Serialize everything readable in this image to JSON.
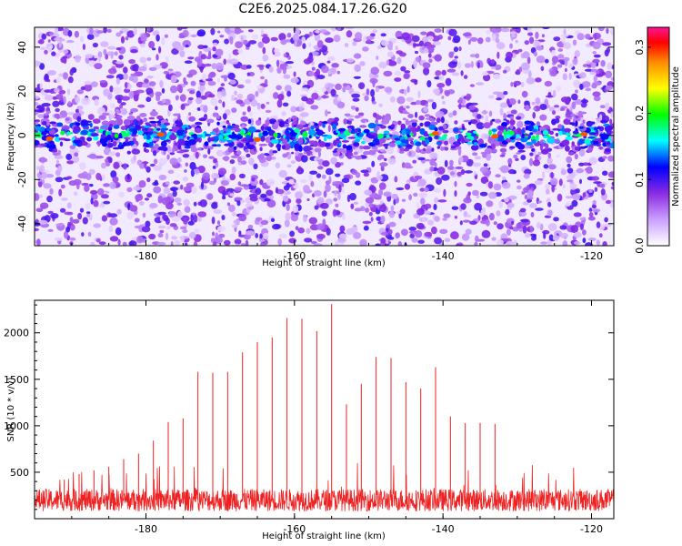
{
  "figure_title": "C2E6.2025.084.17.26.G20",
  "chart_data": [
    {
      "type": "heatmap",
      "title": "C2E6.2025.084.17.26.G20",
      "xlabel": "Height of straight line (km)",
      "ylabel": "Frequency (Hz)",
      "xlim": [
        -195,
        -117
      ],
      "ylim": [
        -50,
        49
      ],
      "x_ticks": [
        -180,
        -160,
        -140,
        -120
      ],
      "y_ticks": [
        -40,
        -20,
        0,
        20,
        40
      ],
      "colorbar": {
        "label": "Normalized spectral amplitude",
        "range": [
          0.0,
          0.33
        ],
        "ticks": [
          0.0,
          0.1,
          0.2,
          0.3
        ],
        "colormap": [
          "#ffffff",
          "#c9a0ff",
          "#8a2be2",
          "#0000ff",
          "#00ffff",
          "#00ff00",
          "#ffff00",
          "#ff8c00",
          "#ff0000",
          "#ff1493"
        ]
      },
      "description_values": {
        "high_amplitude_band_center_hz": 0,
        "high_amplitude_band_halfwidth_hz": 8,
        "band_peak_amplitude": 0.33,
        "background_amplitude": 0.05
      }
    },
    {
      "type": "line",
      "xlabel": "Height of straight line (km)",
      "ylabel": "SNR (10 * v/v)",
      "xlim": [
        -195,
        -117
      ],
      "ylim": [
        0,
        2350
      ],
      "x_ticks": [
        -180,
        -160,
        -140,
        -120
      ],
      "y_ticks": [
        500,
        1000,
        1500,
        2000
      ],
      "color": "#ee2222",
      "noise_floor": {
        "mean": 200,
        "max": 600
      },
      "peaks": {
        "x": [
          -191,
          -189,
          -187,
          -185,
          -183,
          -181,
          -179,
          -177,
          -175,
          -173,
          -171,
          -169,
          -167,
          -165,
          -163,
          -161,
          -159,
          -157,
          -155,
          -153,
          -151,
          -149,
          -147,
          -145,
          -143,
          -141,
          -139,
          -137,
          -135,
          -133
        ],
        "y": [
          420,
          480,
          520,
          560,
          640,
          700,
          840,
          1040,
          1080,
          1580,
          1570,
          1580,
          1790,
          1900,
          1950,
          2160,
          2150,
          2020,
          2310,
          1230,
          1450,
          1740,
          1730,
          1470,
          1400,
          1630,
          1100,
          1030,
          1030,
          1020
        ]
      }
    }
  ]
}
